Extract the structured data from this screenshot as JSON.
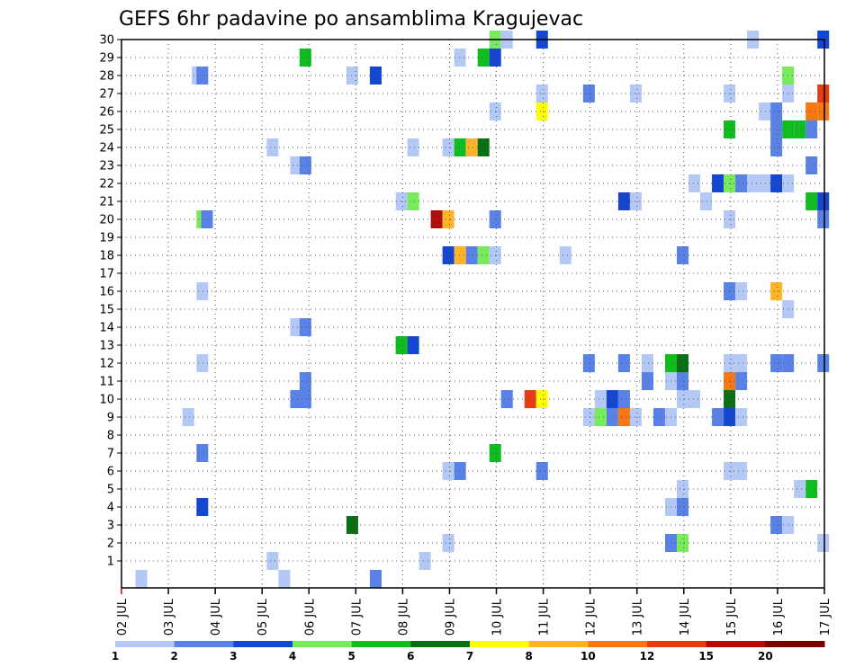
{
  "chart_data": {
    "type": "heatmap",
    "title": "GEFS 6hr padavine po ansamblima Kragujevac",
    "y_ticks": [
      "1",
      "2",
      "3",
      "4",
      "5",
      "6",
      "7",
      "8",
      "9",
      "10",
      "11",
      "12",
      "13",
      "14",
      "15",
      "16",
      "17",
      "18",
      "19",
      "20",
      "21",
      "22",
      "23",
      "24",
      "25",
      "26",
      "27",
      "28",
      "29",
      "30"
    ],
    "x_ticks": [
      "02 JUL",
      "03 JUL",
      "04 JUL",
      "05 JUL",
      "06 JUL",
      "07 JUL",
      "08 JUL",
      "09 JUL",
      "10 JUL",
      "11 JUL",
      "12 JUL",
      "13 JUL",
      "14 JUL",
      "15 JUL",
      "16 JUL",
      "17 JUL"
    ],
    "grid": true,
    "colorbar": {
      "tick_labels": [
        "1",
        "2",
        "3",
        "4",
        "5",
        "6",
        "7",
        "8",
        "10",
        "12",
        "15",
        "20"
      ],
      "colors": [
        "#b4c8f5",
        "#5a82e6",
        "#1446d2",
        "#78eb5a",
        "#0fbe1e",
        "#0a6e14",
        "#ffff00",
        "#ffb428",
        "#f57814",
        "#e63c14",
        "#b40a0a",
        "#780000"
      ]
    },
    "cells": [
      {
        "t": 0.3,
        "m": 0,
        "c": 0
      },
      {
        "t": 1.3,
        "m": 9,
        "c": 0
      },
      {
        "t": 1.5,
        "m": 28,
        "c": 0
      },
      {
        "t": 1.6,
        "m": 28,
        "c": 1
      },
      {
        "t": 1.6,
        "m": 20,
        "c": 3
      },
      {
        "t": 1.7,
        "m": 20,
        "c": 1
      },
      {
        "t": 1.6,
        "m": 16,
        "c": 0
      },
      {
        "t": 1.6,
        "m": 12,
        "c": 0
      },
      {
        "t": 1.6,
        "m": 7,
        "c": 1
      },
      {
        "t": 1.6,
        "m": 4,
        "c": 2
      },
      {
        "t": 3.1,
        "m": 24,
        "c": 0
      },
      {
        "t": 3.6,
        "m": 23,
        "c": 0
      },
      {
        "t": 3.8,
        "m": 23,
        "c": 1
      },
      {
        "t": 3.6,
        "m": 14,
        "c": 0
      },
      {
        "t": 3.8,
        "m": 14,
        "c": 1
      },
      {
        "t": 3.6,
        "m": 10,
        "c": 1
      },
      {
        "t": 3.8,
        "m": 10,
        "c": 1
      },
      {
        "t": 3.8,
        "m": 11,
        "c": 1
      },
      {
        "t": 3.1,
        "m": 1,
        "c": 0
      },
      {
        "t": 3.35,
        "m": 0,
        "c": 0
      },
      {
        "t": 3.8,
        "m": 29,
        "c": 4
      },
      {
        "t": 4.8,
        "m": 28,
        "c": 0
      },
      {
        "t": 5.3,
        "m": 28,
        "c": 2
      },
      {
        "t": 4.8,
        "m": 3,
        "c": 5
      },
      {
        "t": 5.3,
        "m": 0,
        "c": 1
      },
      {
        "t": 5.85,
        "m": 21,
        "c": 0
      },
      {
        "t": 6.1,
        "m": 21,
        "c": 3
      },
      {
        "t": 6.1,
        "m": 24,
        "c": 0
      },
      {
        "t": 5.85,
        "m": 13,
        "c": 4
      },
      {
        "t": 6.1,
        "m": 13,
        "c": 2
      },
      {
        "t": 6.35,
        "m": 1,
        "c": 0
      },
      {
        "t": 6.6,
        "m": 20,
        "c": 10
      },
      {
        "t": 6.85,
        "m": 20,
        "c": 7
      },
      {
        "t": 6.85,
        "m": 24,
        "c": 0
      },
      {
        "t": 7.1,
        "m": 24,
        "c": 4
      },
      {
        "t": 7.35,
        "m": 24,
        "c": 7
      },
      {
        "t": 7.6,
        "m": 24,
        "c": 5
      },
      {
        "t": 7.1,
        "m": 29,
        "c": 0
      },
      {
        "t": 7.6,
        "m": 29,
        "c": 4
      },
      {
        "t": 7.85,
        "m": 29,
        "c": 2
      },
      {
        "t": 7.85,
        "m": 30,
        "c": 3
      },
      {
        "t": 8.1,
        "m": 30,
        "c": 0
      },
      {
        "t": 6.85,
        "m": 18,
        "c": 2
      },
      {
        "t": 7.1,
        "m": 18,
        "c": 7
      },
      {
        "t": 7.35,
        "m": 18,
        "c": 1
      },
      {
        "t": 7.6,
        "m": 18,
        "c": 3
      },
      {
        "t": 7.85,
        "m": 18,
        "c": 0
      },
      {
        "t": 7.85,
        "m": 26,
        "c": 0
      },
      {
        "t": 7.85,
        "m": 20,
        "c": 1
      },
      {
        "t": 6.85,
        "m": 6,
        "c": 0
      },
      {
        "t": 7.1,
        "m": 6,
        "c": 1
      },
      {
        "t": 6.85,
        "m": 2,
        "c": 0
      },
      {
        "t": 7.85,
        "m": 7,
        "c": 4
      },
      {
        "t": 8.1,
        "m": 10,
        "c": 1
      },
      {
        "t": 8.6,
        "m": 10,
        "c": 9
      },
      {
        "t": 8.85,
        "m": 10,
        "c": 6
      },
      {
        "t": 8.85,
        "m": 27,
        "c": 0
      },
      {
        "t": 8.85,
        "m": 26,
        "c": 6
      },
      {
        "t": 8.85,
        "m": 30,
        "c": 2
      },
      {
        "t": 8.85,
        "m": 6,
        "c": 1
      },
      {
        "t": 9.35,
        "m": 18,
        "c": 0
      },
      {
        "t": 9.85,
        "m": 9,
        "c": 0
      },
      {
        "t": 10.1,
        "m": 9,
        "c": 3
      },
      {
        "t": 10.1,
        "m": 10,
        "c": 0
      },
      {
        "t": 10.35,
        "m": 10,
        "c": 2
      },
      {
        "t": 10.35,
        "m": 9,
        "c": 1
      },
      {
        "t": 9.85,
        "m": 27,
        "c": 1
      },
      {
        "t": 9.85,
        "m": 12,
        "c": 1
      },
      {
        "t": 10.6,
        "m": 21,
        "c": 2
      },
      {
        "t": 10.85,
        "m": 21,
        "c": 0
      },
      {
        "t": 10.85,
        "m": 27,
        "c": 0
      },
      {
        "t": 10.6,
        "m": 9,
        "c": 8
      },
      {
        "t": 10.6,
        "m": 10,
        "c": 1
      },
      {
        "t": 10.85,
        "m": 9,
        "c": 0
      },
      {
        "t": 10.6,
        "m": 12,
        "c": 1
      },
      {
        "t": 11.1,
        "m": 12,
        "c": 0
      },
      {
        "t": 11.1,
        "m": 11,
        "c": 1
      },
      {
        "t": 11.35,
        "m": 9,
        "c": 1
      },
      {
        "t": 11.6,
        "m": 9,
        "c": 0
      },
      {
        "t": 11.6,
        "m": 12,
        "c": 4
      },
      {
        "t": 11.85,
        "m": 12,
        "c": 5
      },
      {
        "t": 11.85,
        "m": 11,
        "c": 1
      },
      {
        "t": 11.6,
        "m": 11,
        "c": 0
      },
      {
        "t": 11.85,
        "m": 10,
        "c": 0
      },
      {
        "t": 12.1,
        "m": 10,
        "c": 0
      },
      {
        "t": 11.6,
        "m": 4,
        "c": 0
      },
      {
        "t": 11.85,
        "m": 4,
        "c": 1
      },
      {
        "t": 11.85,
        "m": 5,
        "c": 0
      },
      {
        "t": 11.6,
        "m": 2,
        "c": 1
      },
      {
        "t": 11.85,
        "m": 2,
        "c": 3
      },
      {
        "t": 11.85,
        "m": 18,
        "c": 1
      },
      {
        "t": 12.1,
        "m": 22,
        "c": 0
      },
      {
        "t": 12.35,
        "m": 21,
        "c": 0
      },
      {
        "t": 12.6,
        "m": 22,
        "c": 2
      },
      {
        "t": 12.85,
        "m": 22,
        "c": 3
      },
      {
        "t": 13.1,
        "m": 22,
        "c": 1
      },
      {
        "t": 13.35,
        "m": 22,
        "c": 0
      },
      {
        "t": 13.6,
        "m": 22,
        "c": 0
      },
      {
        "t": 13.85,
        "m": 22,
        "c": 2
      },
      {
        "t": 14.1,
        "m": 22,
        "c": 0
      },
      {
        "t": 12.6,
        "m": 9,
        "c": 1
      },
      {
        "t": 12.85,
        "m": 9,
        "c": 2
      },
      {
        "t": 12.85,
        "m": 10,
        "c": 5
      },
      {
        "t": 12.85,
        "m": 11,
        "c": 8
      },
      {
        "t": 13.1,
        "m": 9,
        "c": 0
      },
      {
        "t": 12.85,
        "m": 12,
        "c": 0
      },
      {
        "t": 13.1,
        "m": 12,
        "c": 0
      },
      {
        "t": 13.1,
        "m": 11,
        "c": 1
      },
      {
        "t": 12.85,
        "m": 6,
        "c": 0
      },
      {
        "t": 13.1,
        "m": 6,
        "c": 0
      },
      {
        "t": 12.85,
        "m": 27,
        "c": 0
      },
      {
        "t": 12.85,
        "m": 25,
        "c": 4
      },
      {
        "t": 12.85,
        "m": 20,
        "c": 0
      },
      {
        "t": 12.85,
        "m": 16,
        "c": 1
      },
      {
        "t": 13.1,
        "m": 16,
        "c": 0
      },
      {
        "t": 13.35,
        "m": 30,
        "c": 0
      },
      {
        "t": 13.6,
        "m": 26,
        "c": 0
      },
      {
        "t": 13.85,
        "m": 26,
        "c": 1
      },
      {
        "t": 13.85,
        "m": 25,
        "c": 1
      },
      {
        "t": 13.85,
        "m": 24,
        "c": 1
      },
      {
        "t": 14.1,
        "m": 25,
        "c": 4
      },
      {
        "t": 14.35,
        "m": 25,
        "c": 4
      },
      {
        "t": 14.6,
        "m": 25,
        "c": 1
      },
      {
        "t": 14.1,
        "m": 28,
        "c": 3
      },
      {
        "t": 14.1,
        "m": 27,
        "c": 0
      },
      {
        "t": 14.6,
        "m": 23,
        "c": 1
      },
      {
        "t": 14.6,
        "m": 21,
        "c": 4
      },
      {
        "t": 13.85,
        "m": 16,
        "c": 7
      },
      {
        "t": 14.1,
        "m": 15,
        "c": 0
      },
      {
        "t": 13.85,
        "m": 12,
        "c": 1
      },
      {
        "t": 14.1,
        "m": 12,
        "c": 1
      },
      {
        "t": 13.85,
        "m": 3,
        "c": 1
      },
      {
        "t": 14.1,
        "m": 3,
        "c": 0
      },
      {
        "t": 14.6,
        "m": 5,
        "c": 4
      },
      {
        "t": 14.35,
        "m": 5,
        "c": 0
      },
      {
        "t": 14.85,
        "m": 27,
        "c": 9
      },
      {
        "t": 14.6,
        "m": 26,
        "c": 8
      },
      {
        "t": 14.85,
        "m": 26,
        "c": 8
      },
      {
        "t": 14.85,
        "m": 21,
        "c": 2
      },
      {
        "t": 14.85,
        "m": 20,
        "c": 1
      },
      {
        "t": 14.85,
        "m": 12,
        "c": 1
      },
      {
        "t": 14.85,
        "m": 2,
        "c": 0
      },
      {
        "t": 14.85,
        "m": 30,
        "c": 2
      }
    ]
  }
}
